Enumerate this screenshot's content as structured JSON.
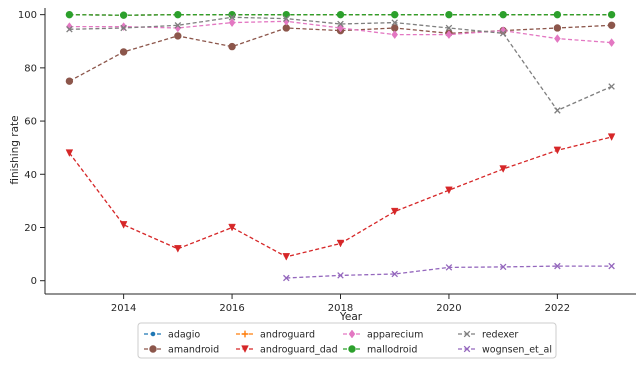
{
  "chart_data": {
    "type": "line",
    "xlabel": "Year",
    "ylabel": "finishing rate",
    "xlim": [
      2012.55,
      2023.45
    ],
    "ylim": [
      -5,
      102.5
    ],
    "x_ticks": [
      2014,
      2016,
      2018,
      2020,
      2022
    ],
    "y_ticks": [
      0,
      20,
      40,
      60,
      80,
      100
    ],
    "grid": false,
    "legend_position": "bottom-center",
    "series": [
      {
        "name": "adagio",
        "color": "#1f77b4",
        "marker": "point",
        "x": [
          2013,
          2014,
          2015,
          2016,
          2017,
          2018,
          2019,
          2020,
          2021,
          2022,
          2023
        ],
        "y": [
          100,
          99.8,
          100,
          100,
          100,
          100,
          100,
          100,
          100,
          100,
          100
        ]
      },
      {
        "name": "amandroid",
        "color": "#8c564b",
        "marker": "circle",
        "x": [
          2013,
          2014,
          2015,
          2016,
          2017,
          2018,
          2019,
          2020,
          2021,
          2022,
          2023
        ],
        "y": [
          75,
          86,
          92,
          88,
          95,
          94,
          95,
          93,
          94,
          95,
          96
        ]
      },
      {
        "name": "androguard",
        "color": "#ff7f0e",
        "marker": "plus",
        "x": [
          2013,
          2014,
          2015,
          2016,
          2017,
          2018,
          2019,
          2020,
          2021,
          2022,
          2023
        ],
        "y": [
          100,
          99.8,
          100,
          100,
          100,
          100,
          100,
          100,
          100,
          100,
          100
        ]
      },
      {
        "name": "androguard_dad",
        "color": "#d62728",
        "marker": "triangle-down",
        "x": [
          2013,
          2014,
          2015,
          2016,
          2017,
          2018,
          2019,
          2020,
          2021,
          2022,
          2023
        ],
        "y": [
          48,
          21,
          12,
          20,
          9,
          14,
          26,
          34,
          42,
          49,
          54
        ]
      },
      {
        "name": "apparecium",
        "color": "#e377c2",
        "marker": "diamond",
        "x": [
          2013,
          2014,
          2015,
          2016,
          2017,
          2018,
          2019,
          2020,
          2021,
          2022,
          2023
        ],
        "y": [
          95.5,
          95.5,
          95,
          97,
          97.5,
          95,
          92.5,
          92.5,
          94,
          91,
          89.5
        ]
      },
      {
        "name": "mallodroid",
        "color": "#2ca02c",
        "marker": "circle",
        "x": [
          2013,
          2014,
          2015,
          2016,
          2017,
          2018,
          2019,
          2020,
          2021,
          2022,
          2023
        ],
        "y": [
          100,
          99.8,
          100,
          100,
          100,
          100,
          100,
          100,
          100,
          100,
          100
        ]
      },
      {
        "name": "redexer",
        "color": "#7f7f7f",
        "marker": "x",
        "x": [
          2013,
          2014,
          2015,
          2016,
          2017,
          2018,
          2019,
          2020,
          2021,
          2022,
          2023
        ],
        "y": [
          94.5,
          95,
          96,
          99,
          98.5,
          96.5,
          97,
          95,
          93,
          64,
          73
        ]
      },
      {
        "name": "wognsen_et_al",
        "color": "#9467bd",
        "marker": "x",
        "x": [
          2017,
          2018,
          2019,
          2020,
          2021,
          2022,
          2023
        ],
        "y": [
          1,
          2,
          2.5,
          5,
          5.2,
          5.5,
          5.5
        ]
      }
    ]
  }
}
